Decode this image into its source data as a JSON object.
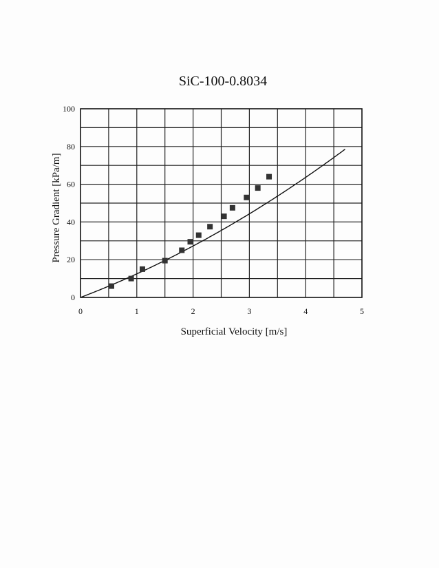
{
  "chart_data": {
    "type": "scatter",
    "title": "SiC-100-0.8034",
    "xlabel": "Superficial Velocity [m/s]",
    "ylabel": "Pressure Gradient [kPa/m]",
    "xlim": [
      0,
      5
    ],
    "ylim": [
      0,
      100
    ],
    "x_ticks": [
      "0",
      "1",
      "2",
      "3",
      "4",
      "5"
    ],
    "y_ticks": [
      "0",
      "20",
      "40",
      "60",
      "80",
      "100"
    ],
    "grid": true,
    "series": [
      {
        "marker": "square",
        "x": [
          0.55,
          0.9,
          1.1,
          1.5,
          1.8,
          1.95,
          2.1,
          2.3,
          2.55,
          2.7,
          2.95,
          3.15,
          3.35
        ],
        "y": [
          6,
          10,
          15,
          19.5,
          25,
          29.5,
          33,
          37.5,
          43,
          47.5,
          53,
          58,
          64
        ]
      },
      {
        "style": "line",
        "x": [
          0,
          0.5,
          1.0,
          1.5,
          2.0,
          2.5,
          3.0,
          3.5,
          4.0,
          4.5
        ],
        "y": [
          0,
          5.9,
          12.5,
          19.8,
          27.8,
          36.5,
          45.9,
          56,
          66.8,
          78.3
        ]
      }
    ]
  }
}
